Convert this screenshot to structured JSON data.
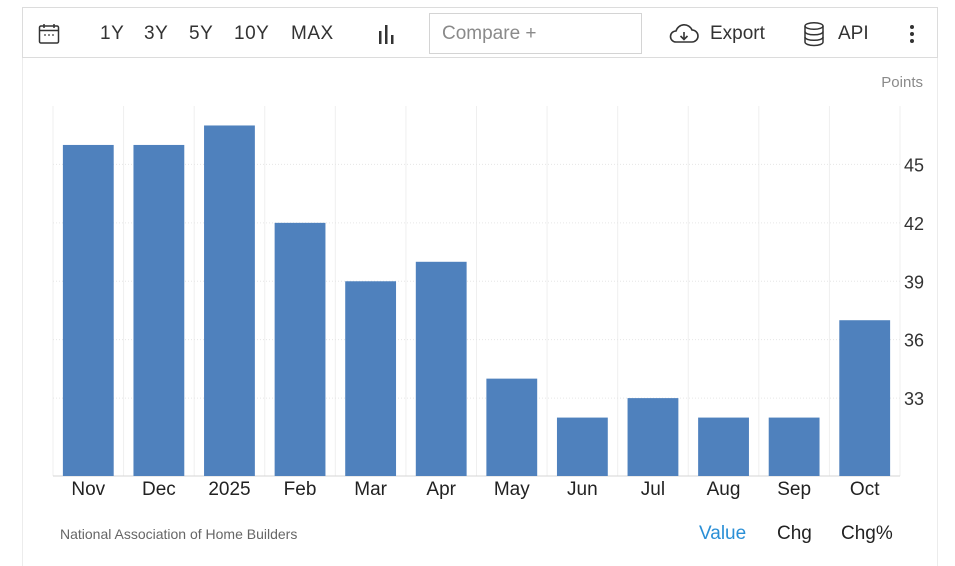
{
  "toolbar": {
    "icons": {
      "calendar": "calendar-icon",
      "chart_type": "bar-chart-icon",
      "export": "cloud-download-icon",
      "api": "database-icon",
      "more": "more-vertical-icon"
    },
    "ranges": [
      "1Y",
      "3Y",
      "5Y",
      "10Y",
      "MAX"
    ],
    "compare_placeholder": "Compare +",
    "export_label": "Export",
    "api_label": "API"
  },
  "chart_data": {
    "type": "bar",
    "categories": [
      "Nov",
      "Dec",
      "2025",
      "Feb",
      "Mar",
      "Apr",
      "May",
      "Jun",
      "Jul",
      "Aug",
      "Sep",
      "Oct"
    ],
    "values": [
      46,
      46,
      47,
      42,
      39,
      40,
      34,
      32,
      33,
      32,
      32,
      37
    ],
    "unit": "Points",
    "yticks": [
      33,
      36,
      39,
      42,
      45
    ],
    "ylim": [
      29,
      48
    ],
    "y_axis_side": "right",
    "grid": true,
    "bar_color": "#4f81bd"
  },
  "footer": {
    "source": "National Association of Home Builders",
    "tabs": [
      {
        "label": "Value",
        "active": true
      },
      {
        "label": "Chg",
        "active": false
      },
      {
        "label": "Chg%",
        "active": false
      }
    ],
    "active_color": "#2a8fd6"
  }
}
